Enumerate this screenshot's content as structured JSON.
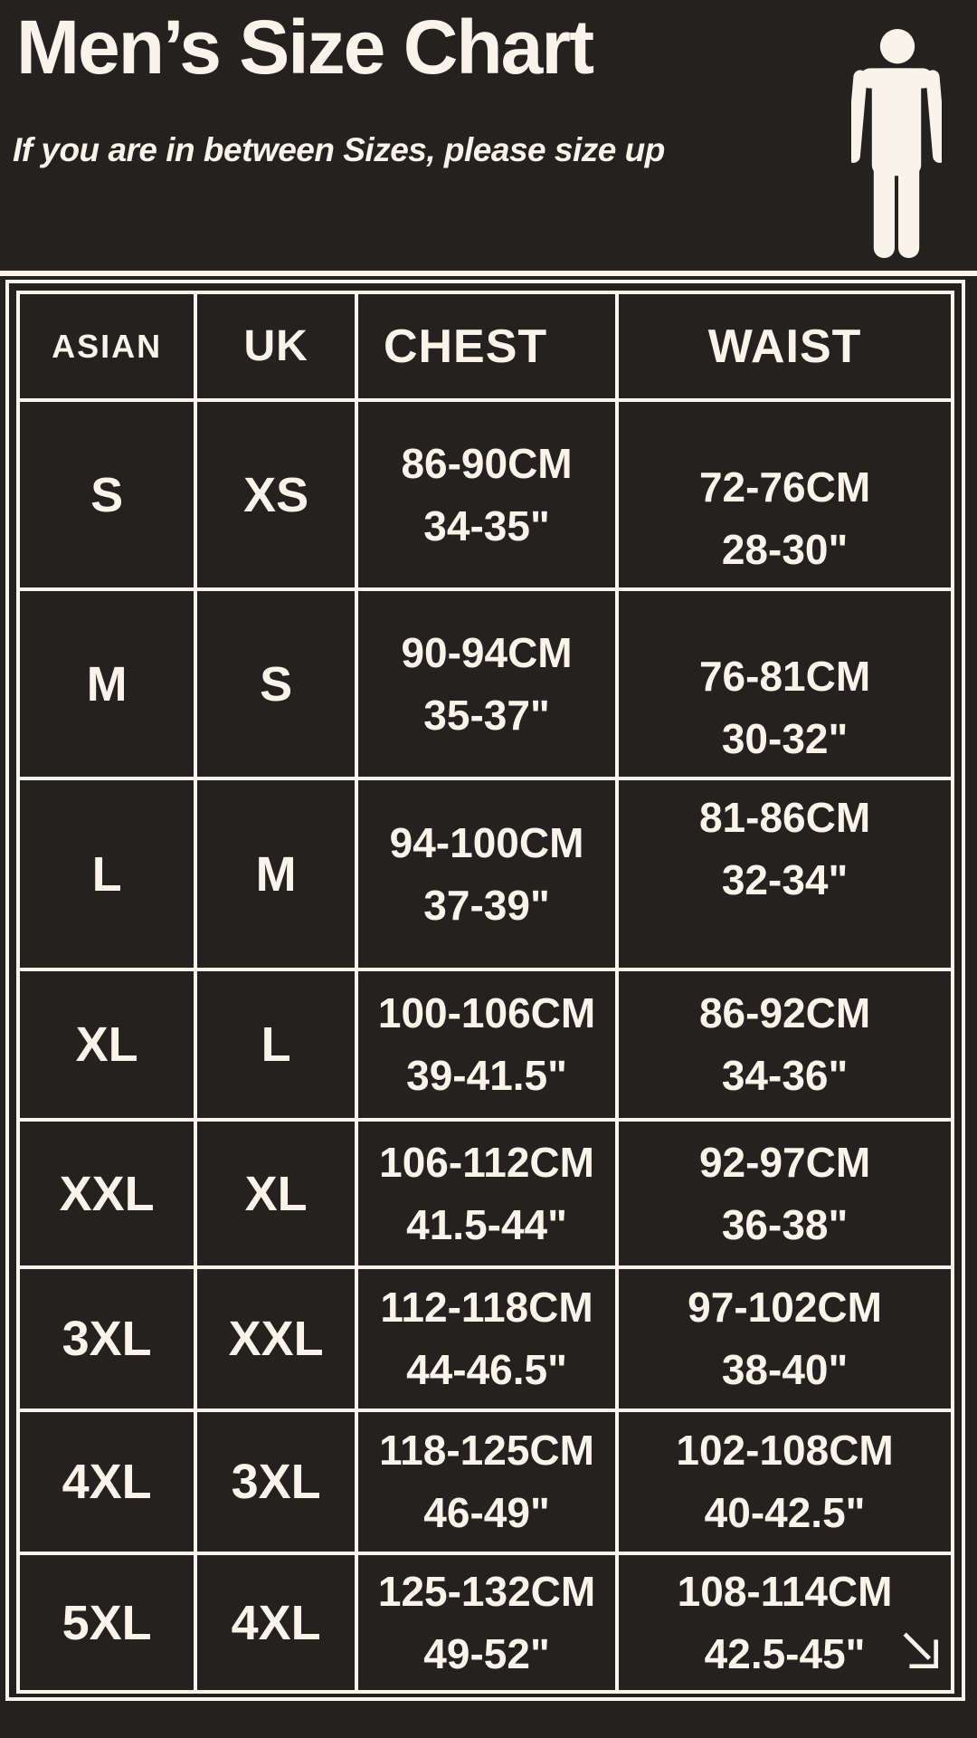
{
  "page": {
    "title": "Men’s Size Chart",
    "subtitle": "If you are in between Sizes, please size up"
  },
  "colors": {
    "background": "#242120",
    "foreground": "#f8f4ea"
  },
  "icons": {
    "person": "standing-man-icon",
    "corner_arrow": "diagonal-down-right-arrow-icon"
  },
  "chart_data": {
    "type": "table",
    "title": "Men's Size Chart",
    "note": "If you are in between Sizes, please size up",
    "columns": [
      "ASIAN",
      "UK",
      "CHEST",
      "WAIST"
    ],
    "rows": [
      {
        "asian": "S",
        "uk": "XS",
        "chest": [
          "86-90CM",
          "34-35\""
        ],
        "waist": [
          "72-76CM",
          "28-30\""
        ]
      },
      {
        "asian": "M",
        "uk": "S",
        "chest": [
          "90-94CM",
          "35-37\""
        ],
        "waist": [
          "76-81CM",
          "30-32\""
        ]
      },
      {
        "asian": "L",
        "uk": "M",
        "chest": [
          "94-100CM",
          "37-39\""
        ],
        "waist": [
          "81-86CM",
          "32-34\""
        ]
      },
      {
        "asian": "XL",
        "uk": "L",
        "chest": [
          "100-106CM",
          "39-41.5\""
        ],
        "waist": [
          "86-92CM",
          "34-36\""
        ]
      },
      {
        "asian": "XXL",
        "uk": "XL",
        "chest": [
          "106-112CM",
          "41.5-44\""
        ],
        "waist": [
          "92-97CM",
          "36-38\""
        ]
      },
      {
        "asian": "3XL",
        "uk": "XXL",
        "chest": [
          "112-118CM",
          "44-46.5\""
        ],
        "waist": [
          "97-102CM",
          "38-40\""
        ]
      },
      {
        "asian": "4XL",
        "uk": "3XL",
        "chest": [
          "118-125CM",
          "46-49\""
        ],
        "waist": [
          "102-108CM",
          "40-42.5\""
        ]
      },
      {
        "asian": "5XL",
        "uk": "4XL",
        "chest": [
          "125-132CM",
          "49-52\""
        ],
        "waist": [
          "108-114CM",
          "42.5-45\""
        ]
      }
    ]
  }
}
